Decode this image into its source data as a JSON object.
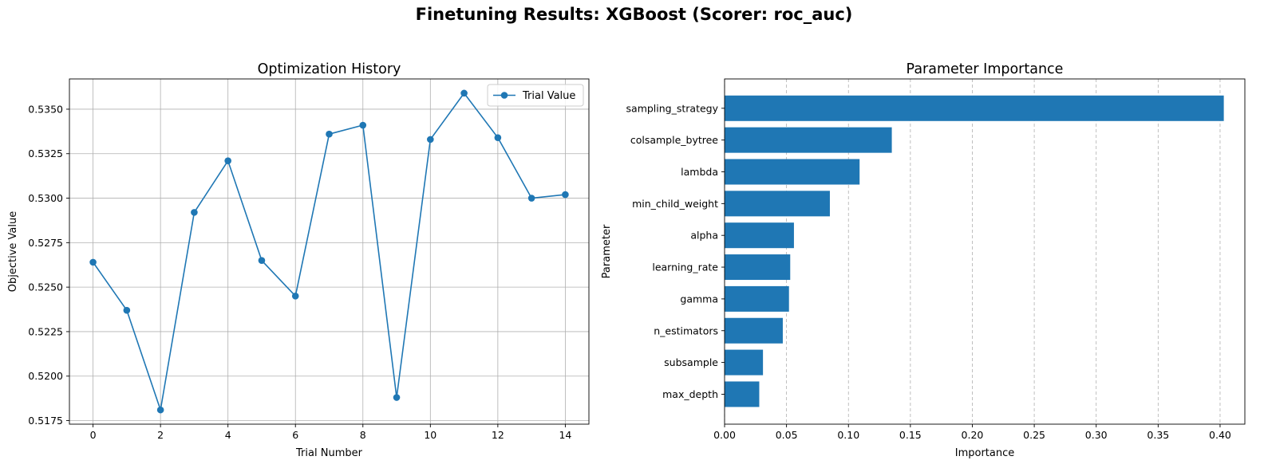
{
  "suptitle": "Finetuning Results: XGBoost (Scorer: roc_auc)",
  "colors": {
    "series": "#1f77b4",
    "grid": "#b0b0b0",
    "axis": "#000000"
  },
  "chart_data": [
    {
      "type": "line",
      "title": "Optimization History",
      "xlabel": "Trial Number",
      "ylabel": "Objective Value",
      "legend": {
        "placement": "top-right",
        "entries": [
          "Trial Value"
        ]
      },
      "grid": true,
      "xlim": [
        -0.7,
        14.7
      ],
      "ylim": [
        0.5173,
        0.5367
      ],
      "xticks": [
        0,
        2,
        4,
        6,
        8,
        10,
        12,
        14
      ],
      "yticks": [
        0.5175,
        0.52,
        0.5225,
        0.525,
        0.5275,
        0.53,
        0.5325,
        0.535
      ],
      "ytick_labels": [
        "0.5175",
        "0.5200",
        "0.5225",
        "0.5250",
        "0.5275",
        "0.5300",
        "0.5325",
        "0.5350"
      ],
      "series": [
        {
          "name": "Trial Value",
          "marker": "circle",
          "x": [
            0,
            1,
            2,
            3,
            4,
            5,
            6,
            7,
            8,
            9,
            10,
            11,
            12,
            13,
            14
          ],
          "y": [
            0.5264,
            0.5237,
            0.5181,
            0.5292,
            0.5321,
            0.5265,
            0.5245,
            0.5336,
            0.5341,
            0.5188,
            0.5333,
            0.5359,
            0.5334,
            0.53,
            0.5302
          ]
        }
      ]
    },
    {
      "type": "bar",
      "orientation": "horizontal",
      "title": "Parameter Importance",
      "xlabel": "Importance",
      "ylabel": "Parameter",
      "grid": "x-dashed",
      "xlim": [
        0,
        0.42
      ],
      "xticks": [
        0.0,
        0.05,
        0.1,
        0.15,
        0.2,
        0.25,
        0.3,
        0.35,
        0.4
      ],
      "xtick_labels": [
        "0.00",
        "0.05",
        "0.10",
        "0.15",
        "0.20",
        "0.25",
        "0.30",
        "0.35",
        "0.40"
      ],
      "categories": [
        "sampling_strategy",
        "colsample_bytree",
        "lambda",
        "min_child_weight",
        "alpha",
        "learning_rate",
        "gamma",
        "n_estimators",
        "subsample",
        "max_depth"
      ],
      "values": [
        0.403,
        0.135,
        0.109,
        0.085,
        0.056,
        0.053,
        0.052,
        0.047,
        0.031,
        0.028
      ]
    }
  ]
}
